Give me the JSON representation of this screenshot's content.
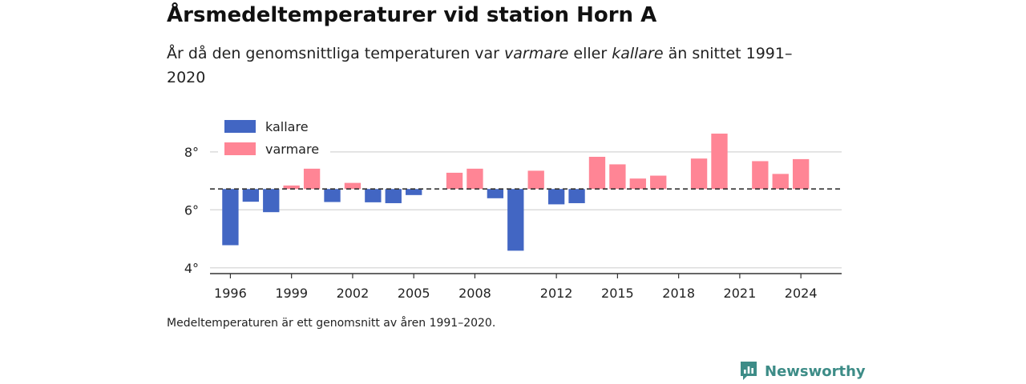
{
  "chart_data": {
    "type": "bar",
    "title": "Årsmedeltemperaturer vid station Horn A",
    "subtitle": {
      "prefix": "År då den genomsnittliga temperaturen var ",
      "warm_word": "varmare",
      "middle": " eller ",
      "cold_word": "kallare",
      "suffix": " än snittet 1991–2020"
    },
    "baseline": 6.72,
    "ylim": [
      3.8,
      9.1
    ],
    "y_ticks": [
      {
        "value": 4,
        "label": "4°"
      },
      {
        "value": 6,
        "label": "6°"
      },
      {
        "value": 8,
        "label": "8°"
      }
    ],
    "x_ticks": [
      {
        "year": 1996,
        "label": "1996"
      },
      {
        "year": 1999,
        "label": "1999"
      },
      {
        "year": 2002,
        "label": "2002"
      },
      {
        "year": 2005,
        "label": "2005"
      },
      {
        "year": 2008,
        "label": "2008"
      },
      {
        "year": 2012,
        "label": "2012"
      },
      {
        "year": 2015,
        "label": "2015"
      },
      {
        "year": 2018,
        "label": "2018"
      },
      {
        "year": 2021,
        "label": "2021"
      },
      {
        "year": 2024,
        "label": "2024"
      }
    ],
    "legend": [
      {
        "key": "kallare",
        "label": "kallare",
        "color": "#4266c3"
      },
      {
        "key": "varmare",
        "label": "varmare",
        "color": "#ff8595"
      }
    ],
    "legend_position": "top-left",
    "grid": true,
    "data": [
      {
        "year": 1996,
        "value": 4.78
      },
      {
        "year": 1997,
        "value": 6.28
      },
      {
        "year": 1998,
        "value": 5.92
      },
      {
        "year": 1999,
        "value": 6.84
      },
      {
        "year": 2000,
        "value": 7.42
      },
      {
        "year": 2001,
        "value": 6.27
      },
      {
        "year": 2002,
        "value": 6.93
      },
      {
        "year": 2003,
        "value": 6.26
      },
      {
        "year": 2004,
        "value": 6.23
      },
      {
        "year": 2005,
        "value": 6.51
      },
      {
        "year": 2007,
        "value": 7.28
      },
      {
        "year": 2008,
        "value": 7.42
      },
      {
        "year": 2009,
        "value": 6.4
      },
      {
        "year": 2010,
        "value": 4.59
      },
      {
        "year": 2011,
        "value": 7.35
      },
      {
        "year": 2012,
        "value": 6.19
      },
      {
        "year": 2013,
        "value": 6.23
      },
      {
        "year": 2014,
        "value": 7.83
      },
      {
        "year": 2015,
        "value": 7.57
      },
      {
        "year": 2016,
        "value": 7.08
      },
      {
        "year": 2017,
        "value": 7.18
      },
      {
        "year": 2019,
        "value": 7.77
      },
      {
        "year": 2020,
        "value": 8.63
      },
      {
        "year": 2022,
        "value": 7.68
      },
      {
        "year": 2023,
        "value": 7.24
      },
      {
        "year": 2024,
        "value": 7.75
      }
    ]
  },
  "note": "Medeltemperaturen är ett genomsnitt av åren 1991–2020.",
  "brand": {
    "name": "Newsworthy",
    "icon": "newsworthy-logo-icon",
    "color": "#3d8c87"
  }
}
